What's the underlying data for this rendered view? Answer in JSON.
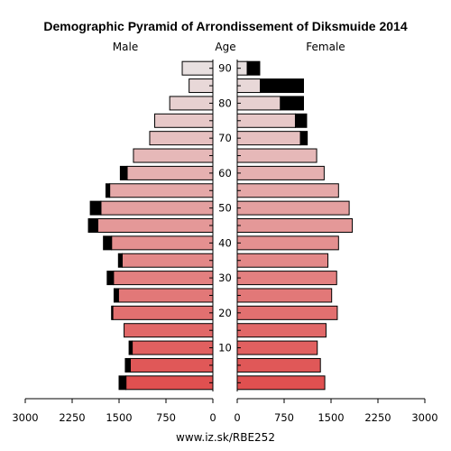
{
  "chart_data": {
    "type": "bar",
    "title": "Demographic Pyramid of Arrondissement of Diksmuide 2014",
    "left_label": "Male",
    "center_label": "Age",
    "right_label": "Female",
    "footer": "www.iz.sk/RBE252",
    "xlim": [
      0,
      3000
    ],
    "x_ticks": [
      0,
      750,
      1500,
      2250,
      3000
    ],
    "x_tick_labels_left": [
      "3000",
      "2250",
      "1500",
      "750",
      "0"
    ],
    "x_tick_labels_right": [
      "0",
      "750",
      "1500",
      "2250",
      "3000"
    ],
    "age_ticks": [
      10,
      20,
      30,
      40,
      50,
      60,
      70,
      80,
      90
    ],
    "age_groups": [
      "0-4",
      "5-9",
      "10-14",
      "15-19",
      "20-24",
      "25-29",
      "30-34",
      "35-39",
      "40-44",
      "45-49",
      "50-54",
      "55-59",
      "60-64",
      "65-69",
      "70-74",
      "75-79",
      "80-84",
      "85-89",
      "90+"
    ],
    "series": [
      {
        "name": "Male",
        "values": [
          1390,
          1320,
          1290,
          1420,
          1600,
          1510,
          1590,
          1450,
          1620,
          1840,
          1790,
          1650,
          1370,
          1270,
          1010,
          930,
          690,
          380,
          490
        ]
      },
      {
        "name": "Male overflow",
        "values": [
          110,
          80,
          50,
          0,
          20,
          70,
          100,
          60,
          130,
          150,
          170,
          60,
          110,
          0,
          0,
          0,
          0,
          0,
          0
        ]
      },
      {
        "name": "Female",
        "values": [
          1400,
          1330,
          1280,
          1420,
          1600,
          1510,
          1590,
          1450,
          1620,
          1840,
          1790,
          1620,
          1390,
          1270,
          1010,
          930,
          690,
          370,
          160
        ]
      },
      {
        "name": "Female overflow",
        "values": [
          0,
          0,
          0,
          0,
          0,
          0,
          0,
          0,
          0,
          0,
          0,
          0,
          0,
          0,
          110,
          180,
          370,
          690,
          200
        ]
      }
    ],
    "colors": {
      "overflow": "#000000",
      "gradient_young": "#e05050",
      "gradient_old": "#e8e0e0"
    },
    "grid": false
  }
}
